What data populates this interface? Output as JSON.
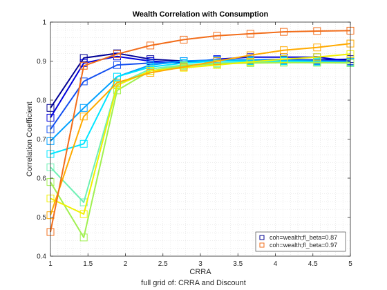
{
  "chart_data": {
    "type": "line",
    "title": "Wealth Correlation with Consumption",
    "xlabel": "CRRA",
    "ylabel": "Correlation Coefficient",
    "caption": "full grid of: CRRA and Discount",
    "xlim": [
      1,
      5
    ],
    "ylim": [
      0.4,
      1
    ],
    "x": [
      1,
      1.444,
      1.889,
      2.333,
      2.778,
      3.222,
      3.667,
      4.111,
      4.556,
      5
    ],
    "xticks": [
      "1",
      "1.5",
      "2",
      "2.5",
      "3",
      "3.5",
      "4",
      "4.5",
      "5"
    ],
    "yticks": [
      "0.4",
      "0.5",
      "0.6",
      "0.7",
      "0.8",
      "0.9",
      "1"
    ],
    "grid": "minor dotted",
    "legend_position": "bottom-right",
    "legend": [
      {
        "label": "coh=wealth;fl_beta=0.87",
        "color": "#00008f"
      },
      {
        "label": "coh=wealth;fl_beta=0.97",
        "color": "#f26d1a"
      }
    ],
    "series": [
      {
        "color": "#000096",
        "values": [
          0.78,
          0.908,
          0.92,
          0.905,
          0.9,
          0.9,
          0.902,
          0.903,
          0.903,
          0.905
        ]
      },
      {
        "color": "#0000dc",
        "values": [
          0.755,
          0.895,
          0.912,
          0.9,
          0.895,
          0.905,
          0.91,
          0.91,
          0.91,
          0.9
        ]
      },
      {
        "color": "#1450f0",
        "values": [
          0.725,
          0.848,
          0.89,
          0.895,
          0.9,
          0.903,
          0.903,
          0.905,
          0.902,
          0.9
        ]
      },
      {
        "color": "#00a0ff",
        "values": [
          0.695,
          0.78,
          0.86,
          0.89,
          0.9,
          0.902,
          0.903,
          0.902,
          0.9,
          0.898
        ]
      },
      {
        "color": "#00e6ff",
        "values": [
          0.662,
          0.688,
          0.86,
          0.885,
          0.895,
          0.9,
          0.9,
          0.9,
          0.898,
          0.895
        ]
      },
      {
        "color": "#6ef0b4",
        "values": [
          0.628,
          0.538,
          0.84,
          0.88,
          0.89,
          0.895,
          0.897,
          0.897,
          0.896,
          0.895
        ]
      },
      {
        "color": "#a0f050",
        "values": [
          0.59,
          0.448,
          0.825,
          0.875,
          0.888,
          0.893,
          0.895,
          0.896,
          0.896,
          0.896
        ]
      },
      {
        "color": "#f0f000",
        "values": [
          0.548,
          0.508,
          0.838,
          0.875,
          0.883,
          0.89,
          0.898,
          0.905,
          0.91,
          0.918
        ]
      },
      {
        "color": "#ffaa00",
        "values": [
          0.505,
          0.758,
          0.845,
          0.87,
          0.885,
          0.9,
          0.915,
          0.928,
          0.935,
          0.945
        ]
      },
      {
        "color": "#f26d1a",
        "values": [
          0.462,
          0.888,
          0.918,
          0.94,
          0.955,
          0.965,
          0.97,
          0.975,
          0.977,
          0.978
        ]
      }
    ]
  }
}
